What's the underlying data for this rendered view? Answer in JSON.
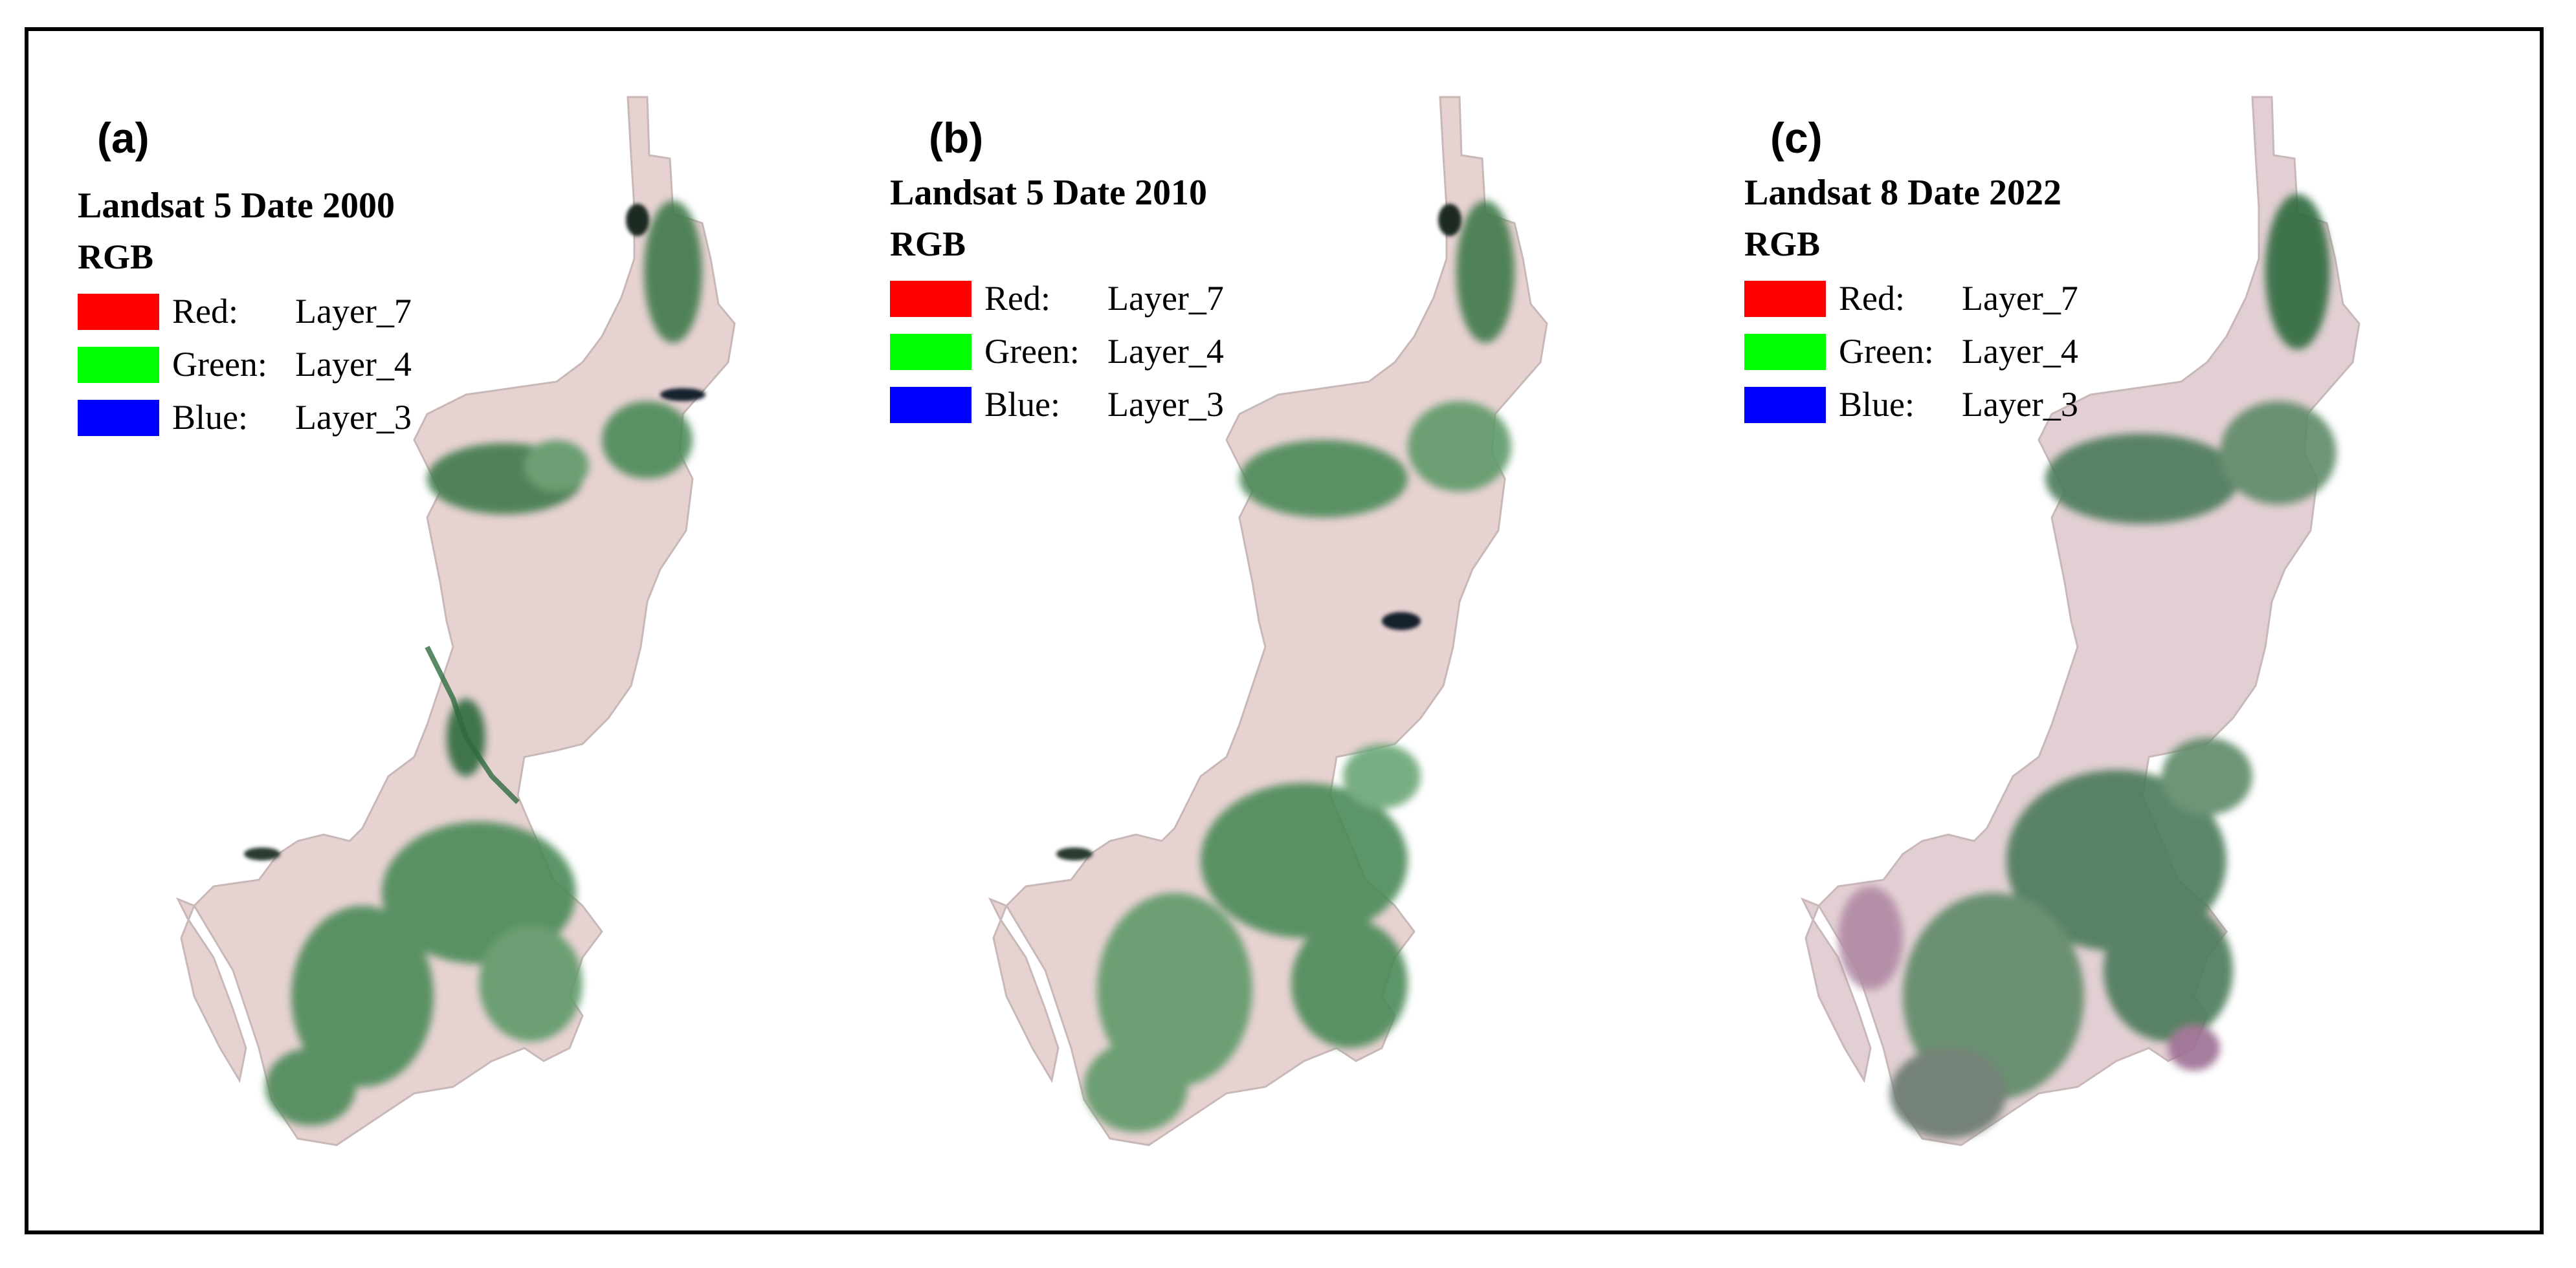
{
  "panels": [
    {
      "label": "(a)",
      "title": "Landsat 5 Date 2000",
      "legend_head": "RGB",
      "legend": [
        {
          "name": "Red:",
          "layer": "Layer_7",
          "color": "#ff0000"
        },
        {
          "name": "Green:",
          "layer": "Layer_4",
          "color": "#00ff00"
        },
        {
          "name": "Blue:",
          "layer": "Layer_3",
          "color": "#0000ff"
        }
      ]
    },
    {
      "label": "(b)",
      "title": "Landsat 5 Date 2010",
      "legend_head": "RGB",
      "legend": [
        {
          "name": "Red:",
          "layer": "Layer_7",
          "color": "#ff0000"
        },
        {
          "name": "Green:",
          "layer": "Layer_4",
          "color": "#00ff00"
        },
        {
          "name": "Blue:",
          "layer": "Layer_3",
          "color": "#0000ff"
        }
      ]
    },
    {
      "label": "(c)",
      "title": "Landsat 8 Date 2022",
      "legend_head": "RGB",
      "legend": [
        {
          "name": "Red:",
          "layer": "Layer_7",
          "color": "#ff0000"
        },
        {
          "name": "Green:",
          "layer": "Layer_4",
          "color": "#00ff00"
        },
        {
          "name": "Blue:",
          "layer": "Layer_3",
          "color": "#0000ff"
        }
      ]
    }
  ],
  "colors": {
    "land": "#e7d2d2",
    "vegetation": "#3f7a4c",
    "vegetation_light": "#6aa676",
    "water": "#16232f",
    "purple_fields": "#b08aa4"
  }
}
